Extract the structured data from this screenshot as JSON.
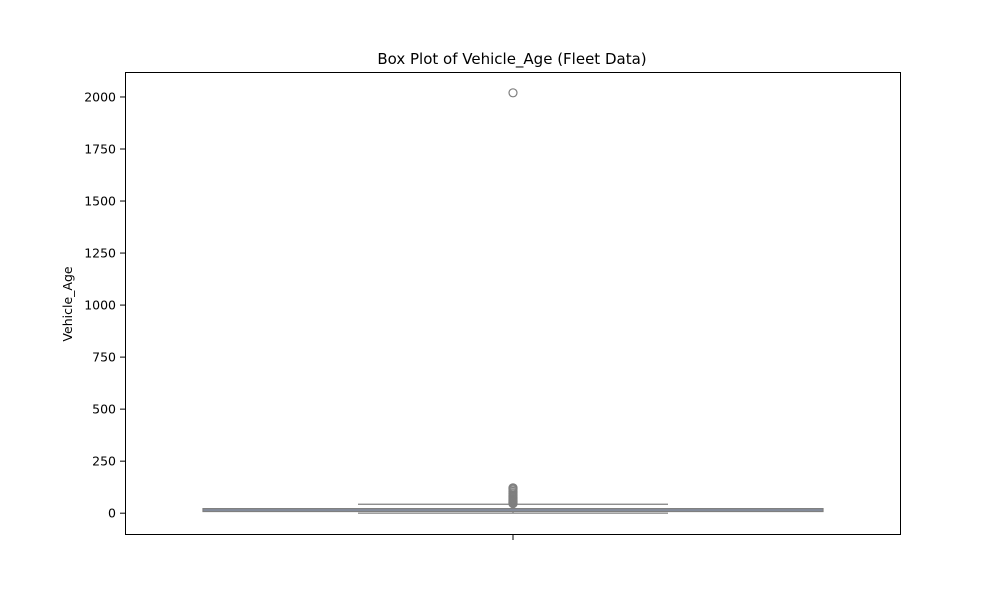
{
  "chart_data": {
    "type": "box",
    "title": "Box Plot of Vehicle_Age (Fleet Data)",
    "xlabel": "",
    "ylabel": "Vehicle_Age",
    "ylim": [
      -100,
      2120
    ],
    "yticks": [
      0,
      250,
      500,
      750,
      1000,
      1250,
      1500,
      1750,
      2000
    ],
    "grid": false,
    "box": {
      "whisker_low": 0,
      "q1": 8,
      "median": 15,
      "q3": 22,
      "whisker_high": 43,
      "outliers": [
        2020,
        122,
        118,
        112,
        105,
        98,
        92,
        86,
        80,
        75,
        70,
        66,
        62,
        58,
        55,
        52,
        49,
        46
      ]
    },
    "colors": {
      "box_face": "#8fa8d8",
      "line": "#7f7f7f"
    }
  }
}
